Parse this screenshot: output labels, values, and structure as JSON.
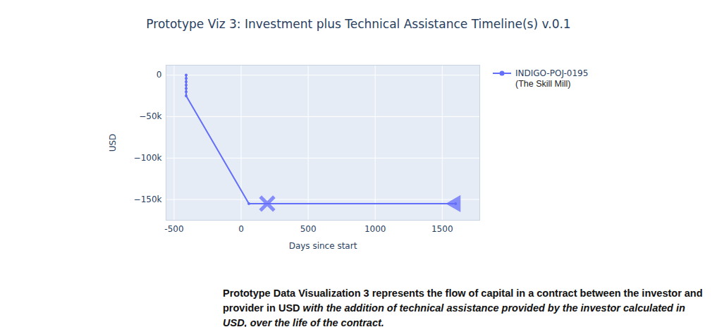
{
  "chart_data": {
    "type": "line",
    "title": "Prototype Viz 3: Investment plus Technical Assistance Timeline(s) v.0.1",
    "x_label": "Days since start",
    "y_label": "USD",
    "xlim": [
      -560,
      1780
    ],
    "ylim": [
      -175000,
      12000
    ],
    "xticks": [
      -500,
      0,
      500,
      1000,
      1500
    ],
    "yticks": [
      {
        "value": 0,
        "label": "0"
      },
      {
        "value": -50000,
        "label": "−50k"
      },
      {
        "value": -100000,
        "label": "−100k"
      },
      {
        "value": -150000,
        "label": "−150k"
      }
    ],
    "grid": true,
    "legend": "top-right",
    "legend_note": "(The Skill Mill)",
    "series": [
      {
        "name": "INDIGO-POJ-0195",
        "type": "line",
        "marker": "circle",
        "color": "#636efa",
        "x": [
          -410,
          -410,
          -410,
          -410,
          -410,
          -410,
          -410,
          58,
          1600
        ],
        "values": [
          0,
          -4000,
          -8000,
          -12000,
          -16000,
          -20000,
          -25000,
          -155000,
          -155000
        ]
      },
      {
        "type": "scatter",
        "marker": "x",
        "color": "#636efa",
        "x": [
          195
        ],
        "values": [
          -155000
        ]
      },
      {
        "type": "scatter",
        "marker": "triangle-left",
        "color": "#636efa",
        "x": [
          1600
        ],
        "values": [
          -155000
        ]
      }
    ],
    "caption": [
      {
        "text": "Prototype Data Visualization 3 represents the flow of capital in a contract between the investor and provider in USD "
      },
      {
        "text": "with the addition of technical assistance provided by the investor calculated in USD, over the life of the contract.",
        "italic": true
      }
    ]
  }
}
